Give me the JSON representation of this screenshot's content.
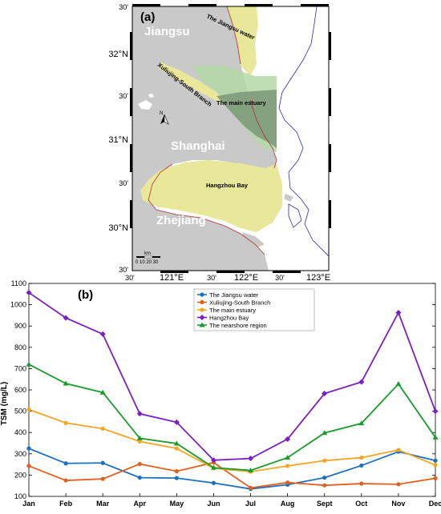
{
  "map": {
    "panel_label": "(a)",
    "lat_ticks": [
      "30'",
      "32°N",
      "30'",
      "31°N",
      "30'",
      "30°N",
      "30'"
    ],
    "lon_ticks": [
      "30'",
      "121°E",
      "30'",
      "122°E",
      "30'",
      "123°E"
    ],
    "regions": {
      "jiangsu": "Jiangsu",
      "shanghai": "Shanghai",
      "zhejiang": "Zhejiang",
      "jiangsu_water": "The Jiangsu water",
      "xuliujing": "Xuliujing-South Branch",
      "main_estuary": "The main estuary",
      "hangzhou_bay": "Hangzhou Bay"
    },
    "north_label": "N",
    "scale_unit": "km",
    "scale_ticks": "0 10 20 30",
    "colors": {
      "land": "#c9c9c9",
      "yellow": "#e8e79a",
      "green_light": "#b5d8a6",
      "green_dark": "#7d9a7a",
      "coast": "#b03030",
      "isobath": "#2a2ab8"
    }
  },
  "chart_data": {
    "type": "line",
    "panel_label": "(b)",
    "ylabel": "TSM (mg/L)",
    "categories": [
      "Jan",
      "Feb",
      "Mar",
      "Apr",
      "May",
      "Jun",
      "Jul",
      "Aug",
      "Sept",
      "Oct",
      "Nov",
      "Dec"
    ],
    "ylim": [
      100,
      1100
    ],
    "yticks": [
      100,
      200,
      300,
      400,
      500,
      600,
      700,
      800,
      900,
      1000,
      1100
    ],
    "grid": false,
    "legend_position": "top-center",
    "series": [
      {
        "name": "The Jiangsu water",
        "color": "#1f6fbf",
        "marker": "circle",
        "values": [
          325,
          255,
          257,
          188,
          186,
          163,
          135,
          155,
          188,
          245,
          310,
          268
        ]
      },
      {
        "name": "Xuliujing-South Branch",
        "color": "#e0611f",
        "marker": "circle",
        "values": [
          243,
          175,
          182,
          252,
          218,
          259,
          140,
          165,
          152,
          160,
          157,
          185
        ]
      },
      {
        "name": "The main estuary",
        "color": "#f5a623",
        "marker": "circle",
        "values": [
          508,
          445,
          418,
          358,
          325,
          232,
          216,
          243,
          268,
          282,
          318,
          247
        ]
      },
      {
        "name": "Hangzhou Bay",
        "color": "#7b1fc4",
        "marker": "diamond",
        "values": [
          1057,
          938,
          862,
          488,
          448,
          270,
          278,
          369,
          583,
          637,
          963,
          500
        ]
      },
      {
        "name": "The nearshore region",
        "color": "#1a9b2b",
        "marker": "triangle",
        "values": [
          720,
          630,
          588,
          373,
          348,
          235,
          222,
          282,
          398,
          443,
          628,
          377
        ]
      }
    ]
  }
}
